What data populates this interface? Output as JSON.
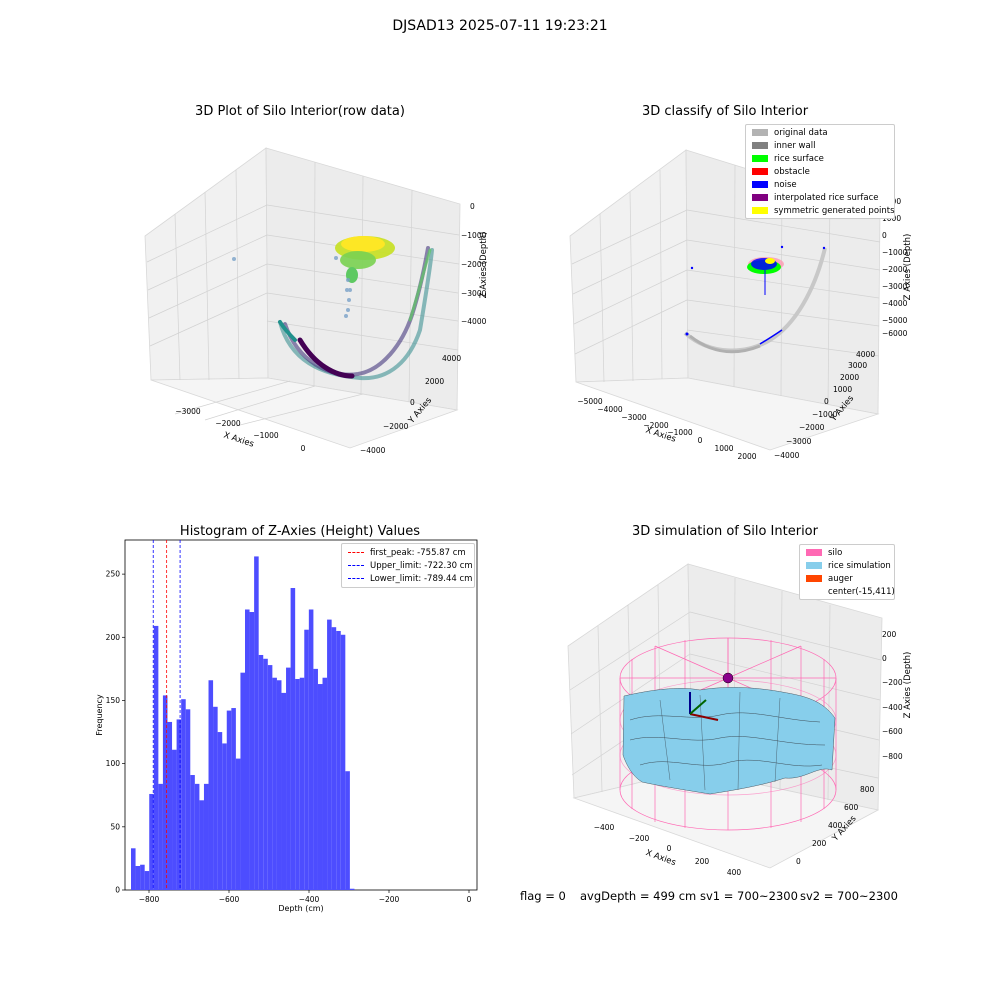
{
  "figure": {
    "suptitle": "DJSAD13 2025-07-11 19:23:21"
  },
  "panel1": {
    "title": "3D Plot of Silo Interior(row data)",
    "xlabel": "X Axies",
    "ylabel": "Y Axies",
    "zlabel": "Z Axies (Depth)",
    "xticks": [
      "−3000",
      "−2000",
      "−1000",
      "0"
    ],
    "yticks": [
      "−4000",
      "−2000",
      "0",
      "2000",
      "4000"
    ],
    "zticks": [
      "0",
      "−1000",
      "−2000",
      "−3000",
      "−4000"
    ]
  },
  "panel2": {
    "title": "3D classify of Silo Interior",
    "xlabel": "X Axies",
    "ylabel": "Y Axies",
    "zlabel": "Z Axies (Depth)",
    "xticks": [
      "−5000",
      "−4000",
      "−3000",
      "−2000",
      "−1000",
      "0",
      "1000",
      "2000"
    ],
    "yticks": [
      "−4000",
      "−3000",
      "−2000",
      "−1000",
      "0",
      "1000",
      "2000",
      "3000",
      "4000"
    ],
    "zticks": [
      "2000",
      "1000",
      "0",
      "−1000",
      "−2000",
      "−3000",
      "−4000",
      "−5000",
      "−6000"
    ],
    "legend": [
      {
        "label": "original data",
        "color": "#b3b3b3"
      },
      {
        "label": "inner wall",
        "color": "#808080"
      },
      {
        "label": "rice surface",
        "color": "#00ff00"
      },
      {
        "label": "obstacle",
        "color": "#ff0000"
      },
      {
        "label": "noise",
        "color": "#0000ff"
      },
      {
        "label": "interpolated rice surface",
        "color": "#800080"
      },
      {
        "label": "symmetric generated points",
        "color": "#ffff00"
      }
    ]
  },
  "panel3": {
    "title": "Histogram of Z-Axies (Height) Values",
    "xlabel": "Depth (cm)",
    "ylabel": "Frequency",
    "legend": [
      {
        "label": "first_peak: -755.87 cm",
        "color": "#ff0000"
      },
      {
        "label": "Upper_limit: -722.30 cm",
        "color": "#0000ff"
      },
      {
        "label": "Lower_limit: -789.44 cm",
        "color": "#0000ff"
      }
    ]
  },
  "panel4": {
    "title": "3D simulation of Silo Interior",
    "xlabel": "X Axies",
    "ylabel": "Y Axies",
    "zlabel": "Z Axies (Depth)",
    "xticks": [
      "−400",
      "−200",
      "0",
      "200",
      "400"
    ],
    "yticks": [
      "0",
      "200",
      "400",
      "600",
      "800"
    ],
    "zticks": [
      "200",
      "0",
      "−200",
      "−400",
      "−600",
      "−800"
    ],
    "legend": [
      {
        "label": "silo",
        "color": "#ff69b4"
      },
      {
        "label": "rice simulation",
        "color": "#87ceeb"
      },
      {
        "label": "auger",
        "color": "#ff4500"
      },
      {
        "label": "center(-15,411)",
        "color": ""
      }
    ]
  },
  "status": {
    "flag": "flag = 0",
    "avg_depth": "avgDepth = 499 cm",
    "sv1": "sv1 = 700~2300",
    "sv2": "sv2 = 700~2300"
  },
  "chart_data": [
    {
      "type": "scatter",
      "title": "3D Plot of Silo Interior(row data)",
      "xlabel": "X Axies",
      "ylabel": "Y Axies",
      "zlabel": "Z Axies (Depth)",
      "xlim": [
        -3800,
        900
      ],
      "ylim": [
        -4500,
        4500
      ],
      "zlim": [
        -4600,
        200
      ]
    },
    {
      "type": "scatter",
      "title": "3D classify of Silo Interior",
      "xlabel": "X Axies",
      "ylabel": "Y Axies",
      "zlabel": "Z Axies (Depth)",
      "xlim": [
        -5500,
        2500
      ],
      "ylim": [
        -4200,
        4200
      ],
      "zlim": [
        -6500,
        2200
      ]
    },
    {
      "type": "bar",
      "title": "Histogram of Z-Axies (Height) Values",
      "xlabel": "Depth (cm)",
      "ylabel": "Frequency",
      "xlim": [
        -860,
        20
      ],
      "ylim": [
        0,
        277
      ],
      "xticks": [
        -800,
        -600,
        -400,
        -200,
        0
      ],
      "yticks": [
        0,
        50,
        100,
        150,
        200,
        250
      ],
      "bin_start": -845,
      "bin_width": 11.4,
      "values": [
        33,
        19,
        20,
        15,
        76,
        209,
        84,
        154,
        133,
        111,
        135,
        151,
        143,
        91,
        84,
        71,
        84,
        166,
        145,
        125,
        116,
        142,
        144,
        104,
        172,
        222,
        220,
        264,
        186,
        183,
        178,
        168,
        166,
        156,
        176,
        239,
        167,
        168,
        206,
        222,
        175,
        163,
        168,
        214,
        208,
        205,
        202,
        94,
        1
      ],
      "vlines": [
        {
          "x": -755.87,
          "color": "#ff0000",
          "label": "first_peak: -755.87 cm"
        },
        {
          "x": -722.3,
          "color": "#0000ff",
          "label": "Upper_limit: -722.30 cm"
        },
        {
          "x": -789.44,
          "color": "#0000ff",
          "label": "Lower_limit: -789.44 cm"
        }
      ]
    },
    {
      "type": "surface",
      "title": "3D simulation of Silo Interior",
      "xlabel": "X Axies",
      "ylabel": "Y Axies",
      "zlabel": "Z Axies (Depth)",
      "xlim": [
        -500,
        500
      ],
      "ylim": [
        -100,
        900
      ],
      "zlim": [
        -850,
        300
      ],
      "center": [
        -15,
        411
      ]
    }
  ]
}
